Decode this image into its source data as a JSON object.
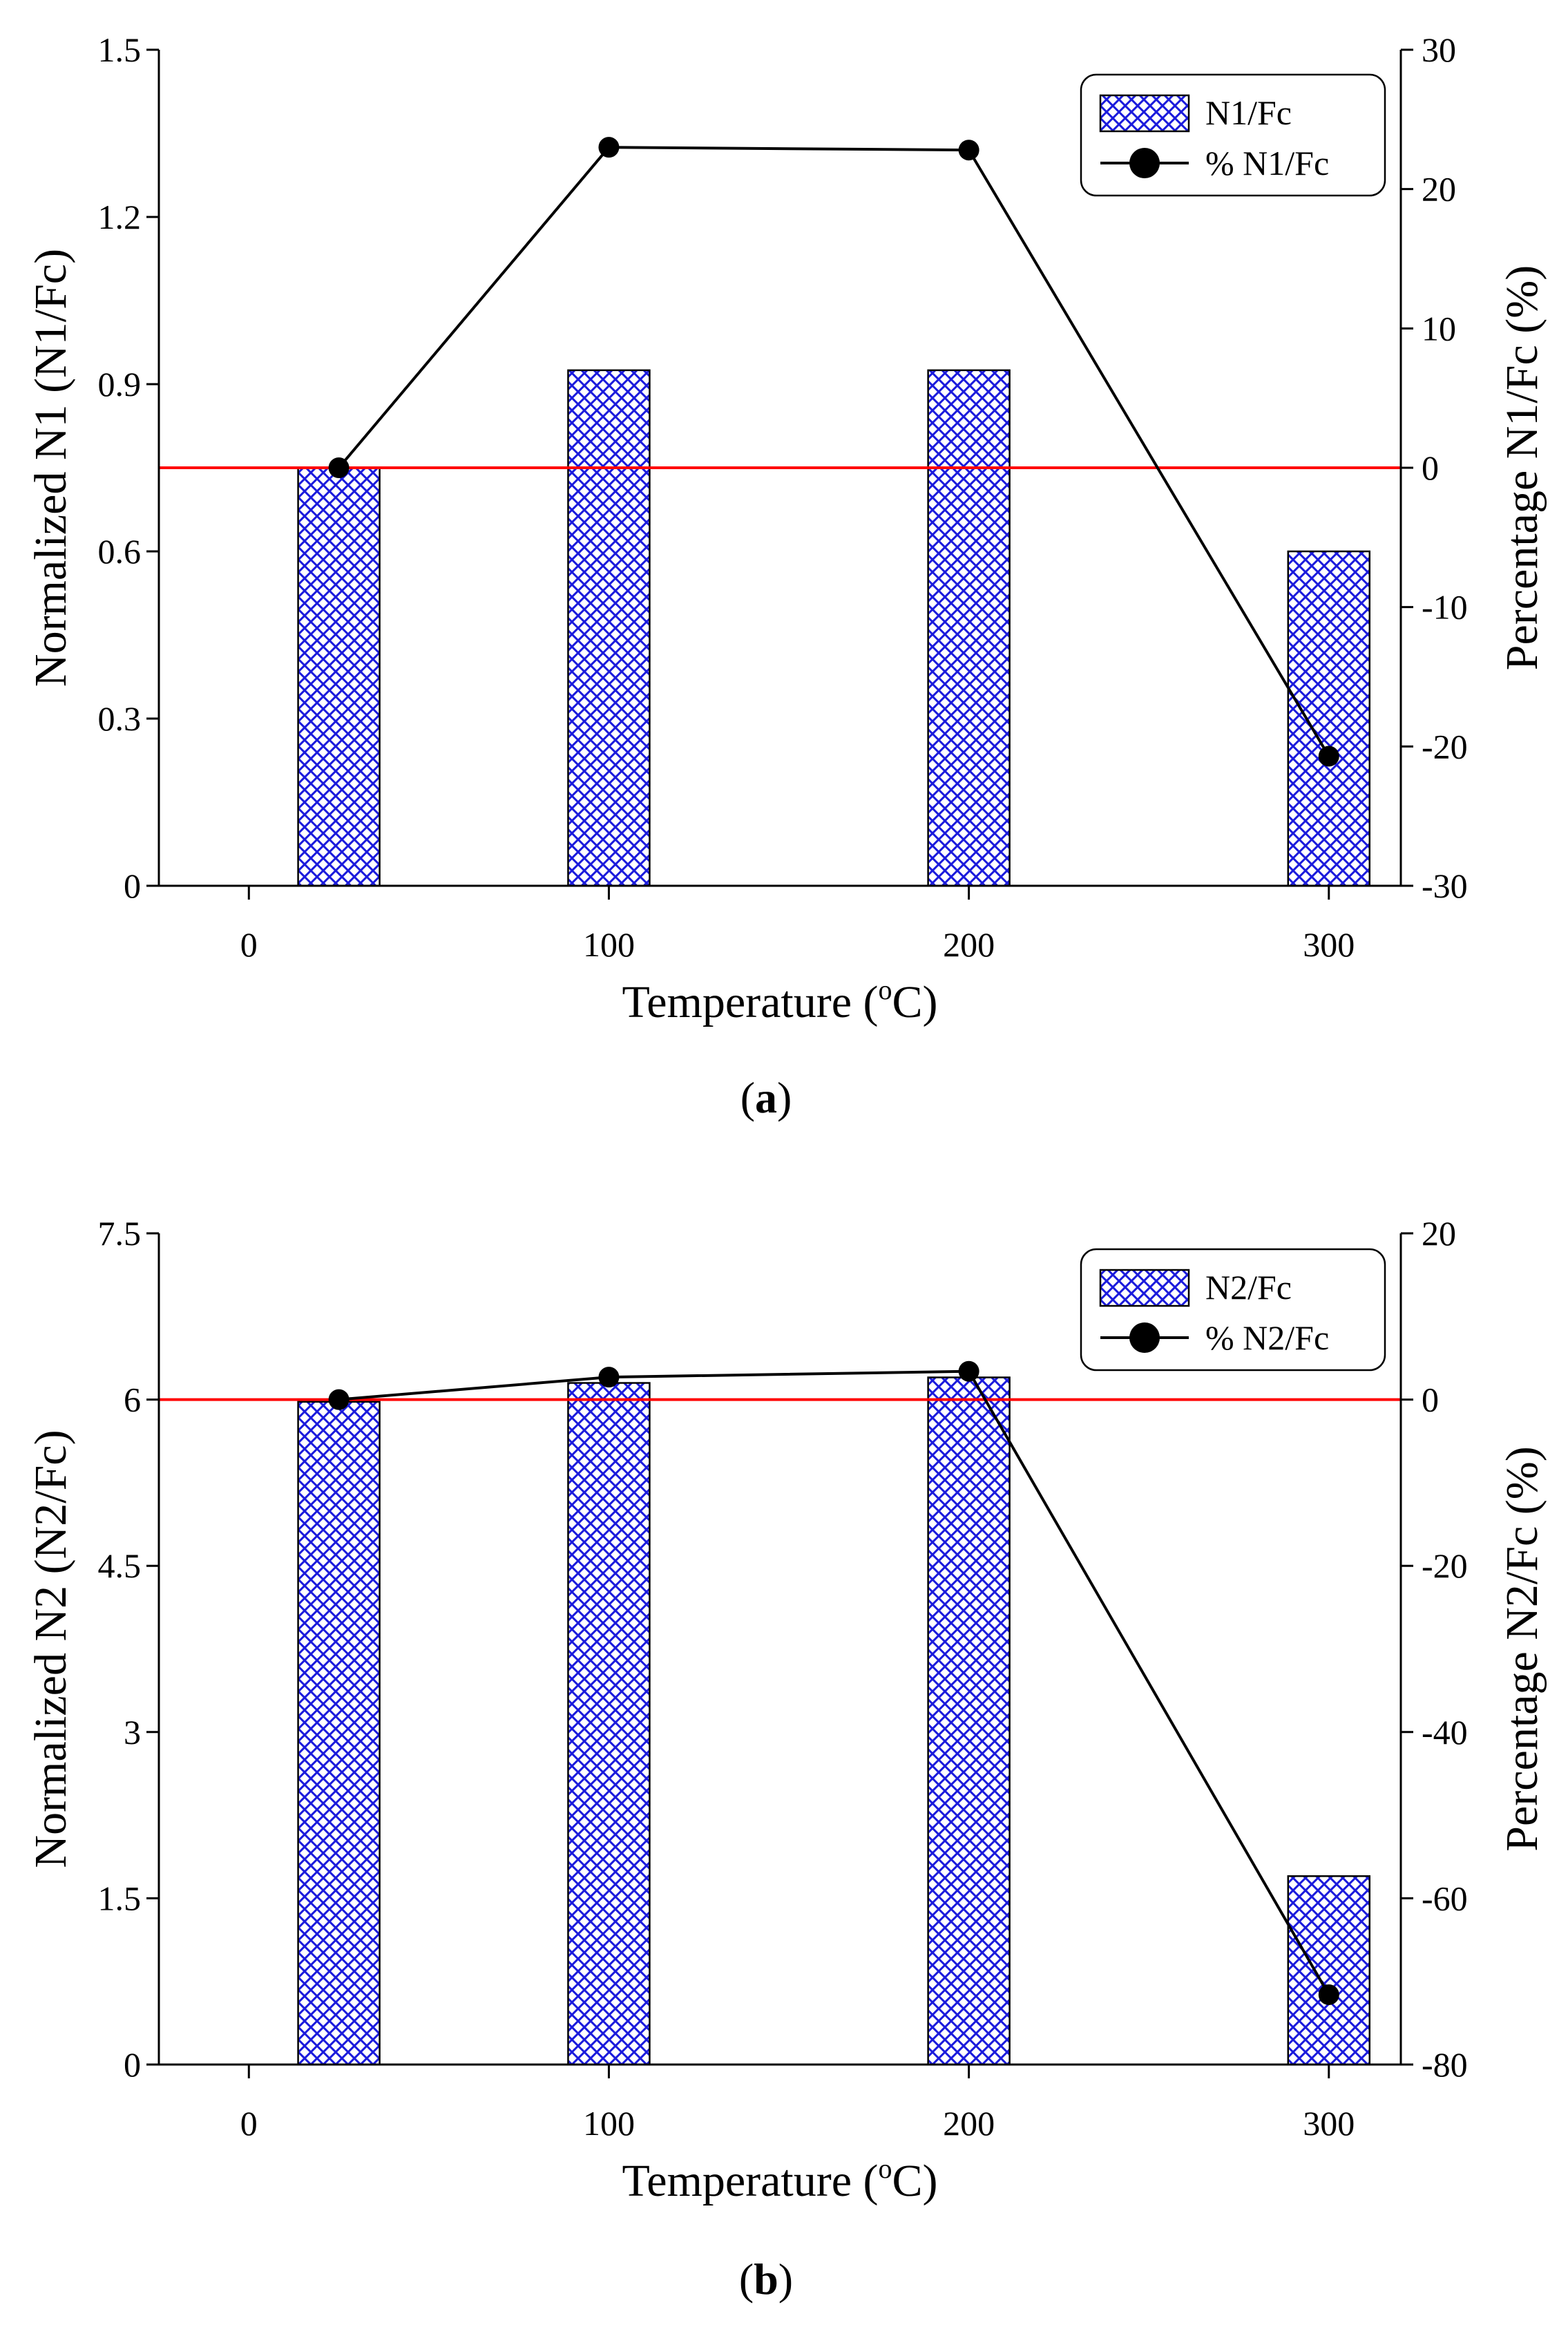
{
  "colors": {
    "bar_fill_pattern": "#1a1adc",
    "bar_outline": "#000000",
    "line": "#000000",
    "marker": "#000000",
    "reference_line": "#ff0000",
    "axis": "#000000"
  },
  "chart_data": [
    {
      "type": "bar",
      "panel": "a",
      "caption": {
        "open": "(",
        "letter": "a",
        "close": ")"
      },
      "xlabel": {
        "main": "Temperature (",
        "sup": "o",
        "end": "C)"
      },
      "ylabel_left": "Normalized N1 (N1/Fc)",
      "ylabel_right": "Percentage N1/Fc  (%)",
      "xlim": [
        -25,
        320
      ],
      "ylim_left": [
        0,
        1.5
      ],
      "ylim_right": [
        -30,
        30
      ],
      "x_ticks": [
        0,
        100,
        200,
        300
      ],
      "x_tick_labels": [
        "0",
        "100",
        "200",
        "300"
      ],
      "y_left_ticks": [
        0,
        0.3,
        0.6,
        0.9,
        1.2,
        1.5
      ],
      "y_left_tick_labels": [
        "0",
        "0.3",
        "0.6",
        "0.9",
        "1.2",
        "1.5"
      ],
      "y_right_ticks": [
        -30,
        -20,
        -10,
        0,
        10,
        20,
        30
      ],
      "y_right_tick_labels": [
        "-30",
        "-20",
        "-10",
        "0",
        "10",
        "20",
        "30"
      ],
      "reference_line_right": 0,
      "legend_position": "top-right",
      "bar_series": {
        "name": "N1/Fc",
        "x": [
          25,
          100,
          200,
          300
        ],
        "values": [
          0.75,
          0.925,
          0.925,
          0.6
        ]
      },
      "line_series": {
        "name": "% N1/Fc",
        "x": [
          25,
          100,
          200,
          300
        ],
        "values": [
          0,
          23,
          22.8,
          -20.7
        ]
      }
    },
    {
      "type": "bar",
      "panel": "b",
      "caption": {
        "open": "(",
        "letter": "b",
        "close": ")"
      },
      "xlabel": {
        "main": "Temperature (",
        "sup": "o",
        "end": "C)"
      },
      "ylabel_left": "Normalized N2 (N2/Fc)",
      "ylabel_right": "Percentage N2/Fc  (%)",
      "xlim": [
        -25,
        320
      ],
      "ylim_left": [
        0,
        7.5
      ],
      "ylim_right": [
        -80,
        20
      ],
      "x_ticks": [
        0,
        100,
        200,
        300
      ],
      "x_tick_labels": [
        "0",
        "100",
        "200",
        "300"
      ],
      "y_left_ticks": [
        0,
        1.5,
        3,
        4.5,
        6,
        7.5
      ],
      "y_left_tick_labels": [
        "0",
        "1.5",
        "3",
        "4.5",
        "6",
        "7.5"
      ],
      "y_right_ticks": [
        -80,
        -60,
        -40,
        -20,
        0,
        20
      ],
      "y_right_tick_labels": [
        "-80",
        "-60",
        "-40",
        "-20",
        "0",
        "20"
      ],
      "reference_line_right": 0,
      "legend_position": "top-right",
      "bar_series": {
        "name": "N2/Fc",
        "x": [
          25,
          100,
          200,
          300
        ],
        "values": [
          5.98,
          6.15,
          6.2,
          1.7
        ]
      },
      "line_series": {
        "name": "% N2/Fc",
        "x": [
          25,
          100,
          200,
          300
        ],
        "values": [
          0,
          2.7,
          3.4,
          -71.6
        ]
      }
    }
  ]
}
